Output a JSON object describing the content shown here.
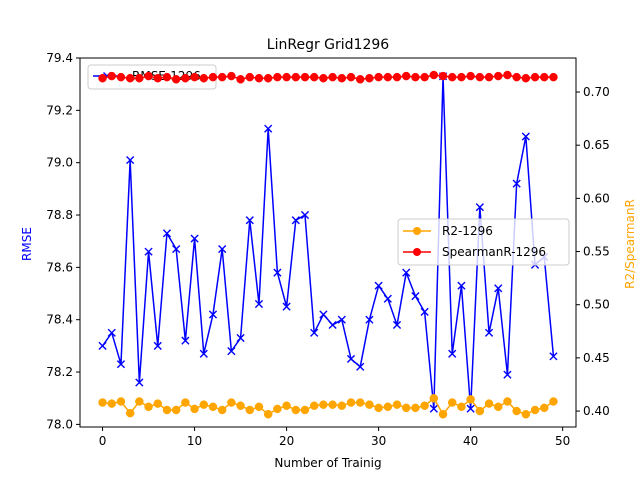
{
  "chart_data": {
    "type": "line",
    "title": "LinRegr Grid1296",
    "xlabel": "Number of Trainig",
    "ylabel_left": "RMSE",
    "ylabel_right": "R2/SpearmanR",
    "xlim": [
      -2.45,
      51.45
    ],
    "ylim_left": [
      77.99,
      79.4
    ],
    "ylim_right": [
      0.385,
      0.732
    ],
    "x_ticks": [
      0,
      10,
      20,
      30,
      40,
      50
    ],
    "y_ticks_left": [
      "78.0",
      "78.2",
      "78.4",
      "78.6",
      "78.8",
      "79.0",
      "79.2",
      "79.4"
    ],
    "y_ticks_right": [
      "0.40",
      "0.45",
      "0.50",
      "0.55",
      "0.60",
      "0.65",
      "0.70"
    ],
    "grid": false,
    "legend_left": {
      "placement": "top-left",
      "entries": [
        "RMSE-1296"
      ]
    },
    "legend_right": {
      "placement": "center-right",
      "entries": [
        "R2-1296",
        "SpearmanR-1296"
      ]
    },
    "colors": {
      "rmse": "#0000ff",
      "r2": "#ffa500",
      "spearman": "#ff0000",
      "right_label": "#ffa500",
      "left_label": "#0000ff"
    },
    "series": [
      {
        "name": "RMSE-1296",
        "axis": "left",
        "marker": "x",
        "values": [
          78.3,
          78.35,
          78.23,
          79.01,
          78.16,
          78.66,
          78.3,
          78.73,
          78.67,
          78.32,
          78.71,
          78.27,
          78.42,
          78.67,
          78.28,
          78.33,
          78.78,
          78.46,
          79.13,
          78.58,
          78.45,
          78.78,
          78.8,
          78.35,
          78.42,
          78.38,
          78.4,
          78.25,
          78.22,
          78.4,
          78.53,
          78.48,
          78.38,
          78.58,
          78.49,
          78.43,
          78.06,
          79.33,
          78.27,
          78.53,
          78.06,
          78.83,
          78.35,
          78.52,
          78.19,
          78.92,
          79.1,
          78.61,
          78.64,
          78.26
        ]
      },
      {
        "name": "R2-1296",
        "axis": "right",
        "marker": "o",
        "values": [
          0.408,
          0.407,
          0.409,
          0.398,
          0.409,
          0.404,
          0.407,
          0.401,
          0.401,
          0.408,
          0.402,
          0.406,
          0.404,
          0.401,
          0.408,
          0.405,
          0.401,
          0.404,
          0.397,
          0.402,
          0.405,
          0.401,
          0.401,
          0.405,
          0.406,
          0.406,
          0.405,
          0.408,
          0.408,
          0.406,
          0.403,
          0.404,
          0.406,
          0.403,
          0.403,
          0.405,
          0.412,
          0.397,
          0.408,
          0.404,
          0.411,
          0.4,
          0.407,
          0.404,
          0.409,
          0.4,
          0.397,
          0.401,
          0.403,
          0.409
        ]
      },
      {
        "name": "SpearmanR-1296",
        "axis": "right",
        "marker": "o",
        "values": [
          0.713,
          0.715,
          0.714,
          0.713,
          0.713,
          0.715,
          0.713,
          0.714,
          0.712,
          0.713,
          0.714,
          0.713,
          0.714,
          0.714,
          0.715,
          0.712,
          0.714,
          0.713,
          0.713,
          0.714,
          0.714,
          0.714,
          0.714,
          0.714,
          0.713,
          0.714,
          0.713,
          0.714,
          0.712,
          0.713,
          0.714,
          0.714,
          0.714,
          0.715,
          0.714,
          0.714,
          0.716,
          0.715,
          0.714,
          0.714,
          0.715,
          0.714,
          0.714,
          0.715,
          0.716,
          0.714,
          0.713,
          0.714,
          0.714,
          0.714
        ]
      }
    ]
  }
}
